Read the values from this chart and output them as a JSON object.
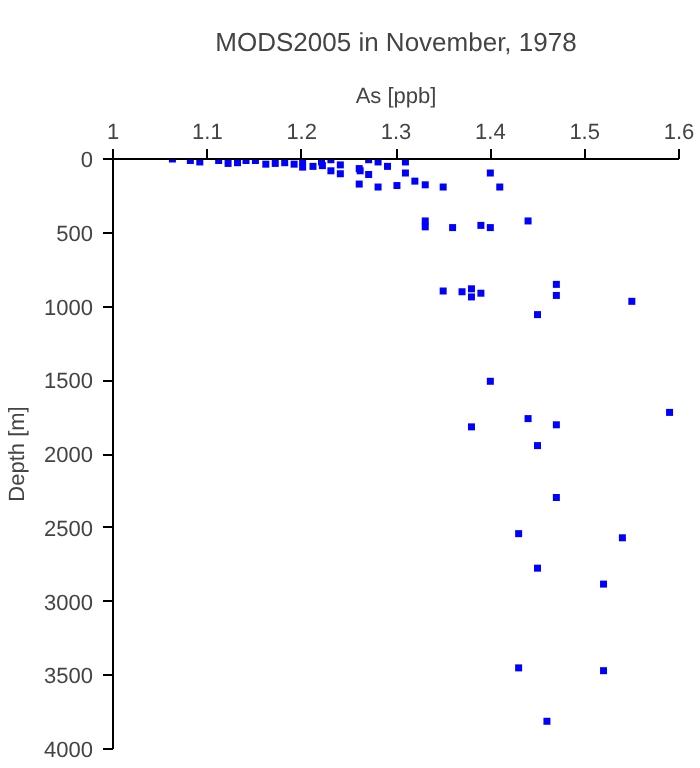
{
  "chart_data": {
    "type": "scatter",
    "title": "MODS2005 in November, 1978",
    "xlabel": "As [ppb]",
    "ylabel": "Depth [m]",
    "xlim": [
      1,
      1.6
    ],
    "xticks": [
      1,
      1.1,
      1.2,
      1.3,
      1.4,
      1.5,
      1.6
    ],
    "ylim": [
      4000,
      0
    ],
    "yticks": [
      0,
      500,
      1000,
      1500,
      2000,
      2500,
      3000,
      3500,
      4000
    ],
    "marker": "square",
    "series": [
      {
        "color": "#0000ff",
        "x": [
          1.063,
          1.082,
          1.092,
          1.112,
          1.122,
          1.132,
          1.141,
          1.151,
          1.162,
          1.172,
          1.182,
          1.192,
          1.201,
          1.201,
          1.212,
          1.221,
          1.222,
          1.231,
          1.231,
          1.241,
          1.241,
          1.261,
          1.262,
          1.261,
          1.271,
          1.271,
          1.281,
          1.281,
          1.291,
          1.301,
          1.31,
          1.31,
          1.32,
          1.331,
          1.35,
          1.4,
          1.41,
          1.331,
          1.331,
          1.36,
          1.39,
          1.4,
          1.44,
          1.35,
          1.37,
          1.38,
          1.38,
          1.39,
          1.47,
          1.47,
          1.55,
          1.45,
          1.4,
          1.44,
          1.59,
          1.38,
          1.47,
          1.45,
          1.47,
          1.43,
          1.54,
          1.45,
          1.52,
          1.43,
          1.52,
          1.46
        ],
        "values": [
          0,
          10,
          20,
          10,
          30,
          25,
          10,
          10,
          35,
          30,
          25,
          35,
          15,
          55,
          50,
          20,
          45,
          5,
          80,
          40,
          100,
          65,
          80,
          170,
          5,
          105,
          20,
          190,
          50,
          180,
          20,
          95,
          150,
          175,
          190,
          95,
          190,
          420,
          460,
          465,
          450,
          465,
          420,
          895,
          900,
          880,
          935,
          910,
          850,
          925,
          965,
          1055,
          1507,
          1760,
          1718,
          1816,
          1802,
          1943,
          2295,
          2540,
          2568,
          2774,
          2882,
          3450,
          3469,
          3812
        ]
      }
    ]
  }
}
